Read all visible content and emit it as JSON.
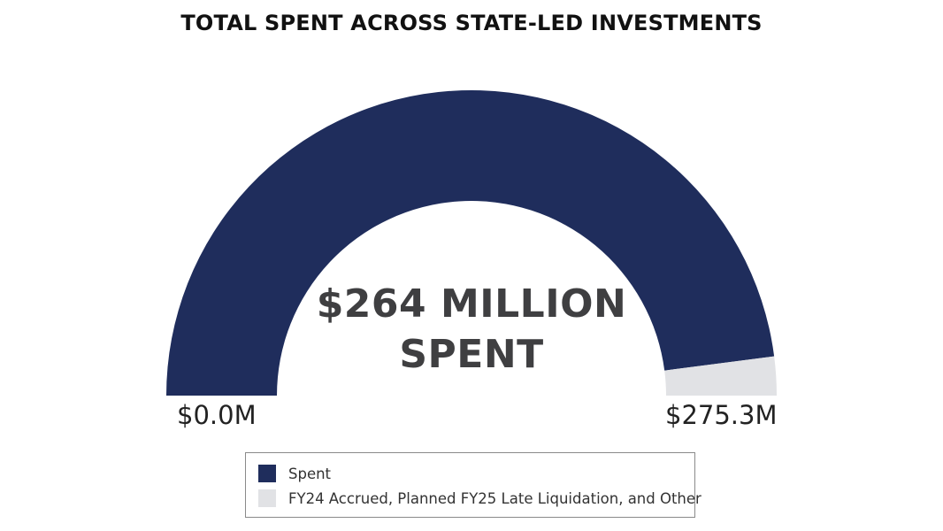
{
  "chart_data": {
    "type": "gauge",
    "title": "TOTAL SPENT ACROSS STATE-LED INVESTMENTS",
    "center_label": {
      "line1": "$264 MILLION",
      "line2": "SPENT"
    },
    "min_label": "$0.0M",
    "max_label": "$275.3M",
    "range": [
      0,
      275.3
    ],
    "units": "millions USD",
    "series": [
      {
        "name": "Spent",
        "value": 264,
        "color": "#1f2d5c"
      },
      {
        "name": "FY24 Accrued, Planned FY25 Late Liquidation, and Other",
        "value": 11.3,
        "color": "#e1e2e5"
      }
    ],
    "legend_position": "bottom"
  }
}
